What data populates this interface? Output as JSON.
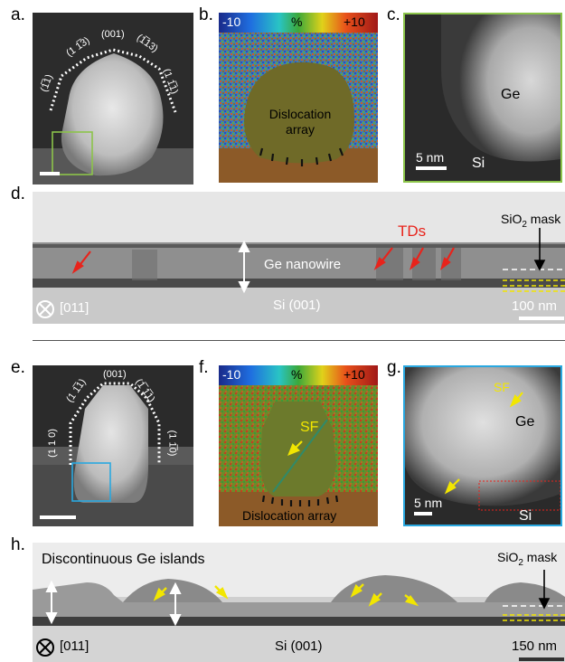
{
  "labels": {
    "a": "a.",
    "b": "b.",
    "c": "c.",
    "d": "d.",
    "e": "e.",
    "f": "f.",
    "g": "g.",
    "h": "h."
  },
  "panel_a": {
    "orientations": [
      "(1̅1)",
      "(1 1̅3)",
      "(001)",
      "(1̅13)",
      "(1 1̅1)"
    ]
  },
  "colorbar": {
    "min": "-10",
    "unit": "%",
    "max": "+10"
  },
  "panel_b": {
    "text_line1": "Dislocation",
    "text_line2": "array"
  },
  "panel_c": {
    "ge": "Ge",
    "si": "Si",
    "scale": "5 nm"
  },
  "panel_d": {
    "tds": "TDs",
    "mask": "SiO",
    "mask_sub": "2",
    "mask_rest": " mask",
    "nanowire": "Ge nanowire",
    "substrate": "Si (001)",
    "direction": "[011]",
    "scale": "100 nm"
  },
  "panel_e": {
    "orientations": [
      "(001)",
      "(1 1̅1)",
      "(1̅ 1̅1)",
      "(1 1 0)",
      "(1 1̅0)"
    ]
  },
  "panel_f": {
    "sf": "SF",
    "dislocation": "Dislocation array"
  },
  "panel_g": {
    "sf": "SF",
    "ge": "Ge",
    "si": "Si",
    "scale": "5 nm"
  },
  "panel_h": {
    "islands": "Discontinuous Ge islands",
    "mask": "SiO",
    "mask_sub": "2",
    "mask_rest": " mask",
    "substrate": "Si (001)",
    "direction": "[011]",
    "scale": "150 nm"
  },
  "colors": {
    "green_box": "#8cc44a",
    "blue_box": "#29a8e0",
    "red": "#e8231b",
    "yellow": "#f2e600"
  }
}
